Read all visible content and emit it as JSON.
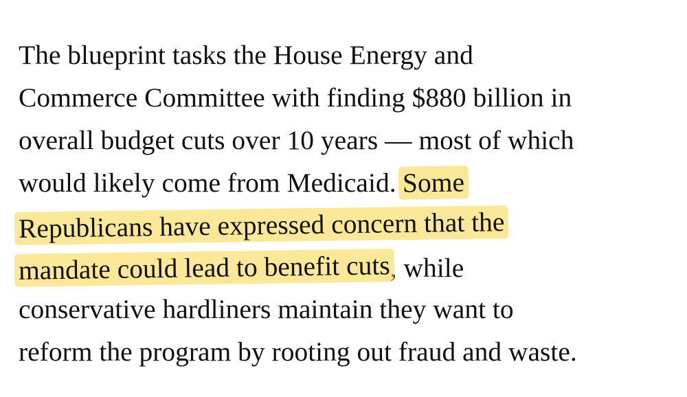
{
  "paragraph": {
    "lines": [
      [
        "The blueprint tasks the House Energy and"
      ],
      [
        "Commerce Committee with finding $880 billion in"
      ],
      [
        "overall budget cuts over 10 years — most of which"
      ],
      [
        "would likely come from Medicaid. ",
        "Some"
      ],
      [
        "Republicans have expressed concern that the"
      ],
      [
        "mandate could lead to benefit cuts",
        ", while"
      ],
      [
        "conservative hardliners maintain they want to"
      ],
      [
        "reform the program by rooting out fraud and waste."
      ]
    ]
  }
}
